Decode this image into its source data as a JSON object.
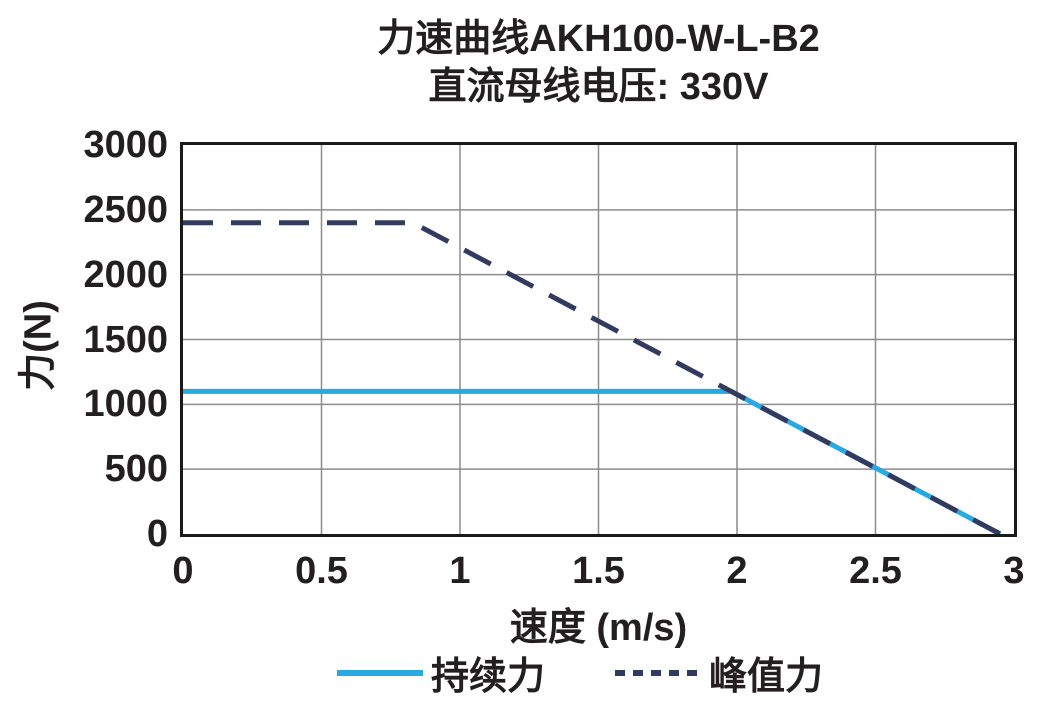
{
  "title": "力速曲线AKH100-W-L-B2",
  "subtitle": "直流母线电压: 330V",
  "chart_data": {
    "type": "line",
    "title": "力速曲线AKH100-W-L-B2",
    "subtitle": "直流母线电压: 330V",
    "xlabel": "速度 (m/s)",
    "ylabel": "力(N)",
    "xlim": [
      0,
      3
    ],
    "ylim": [
      0,
      3000
    ],
    "x_tick_labels": [
      "0",
      "0.5",
      "1",
      "1.5",
      "2",
      "2.5",
      "3"
    ],
    "x_ticks": [
      0,
      0.5,
      1,
      1.5,
      2,
      2.5,
      3
    ],
    "y_ticks": [
      0,
      500,
      1000,
      1500,
      2000,
      2500,
      3000
    ],
    "grid": true,
    "legend_position": "bottom",
    "series": [
      {
        "name": "持续力",
        "style": "solid",
        "color": "#29a9e1",
        "points": [
          [
            0,
            1100
          ],
          [
            1.98,
            1100
          ],
          [
            2.95,
            0
          ]
        ]
      },
      {
        "name": "峰值力",
        "style": "dashed",
        "color": "#333a60",
        "points": [
          [
            0,
            2400
          ],
          [
            0.83,
            2400
          ],
          [
            2.95,
            0
          ]
        ]
      }
    ]
  },
  "colors": {
    "continuous_line": "#29a9e1",
    "peak_line": "#333a60",
    "grid": "#8c8c8c",
    "axis_border": "#1a1a1a",
    "text": "#231f20"
  }
}
